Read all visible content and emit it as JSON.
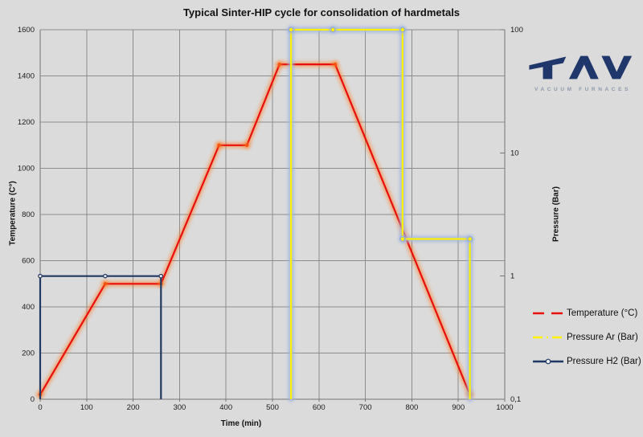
{
  "logo": {
    "brand": "TAV",
    "subtitle": "VACUUM FURNACES"
  },
  "legend": {
    "items": [
      {
        "label": "Temperature (°C)",
        "color": "#e8100c",
        "style": "dash"
      },
      {
        "label": "Pressure Ar (Bar)",
        "color": "#fff100",
        "style": "dash-dot"
      },
      {
        "label": "Pressure H2 (Bar)",
        "color": "#1f3864",
        "style": "line-circle"
      }
    ]
  },
  "chart_data": {
    "type": "line",
    "title": "Typical Sinter-HIP cycle for consolidation of hardmetals",
    "grid": true,
    "legend_position": "right",
    "x_axis": {
      "label": "Time (min)",
      "min": 0,
      "max": 1000,
      "tick_step": 100
    },
    "y_left": {
      "label": "Temperature (C°)",
      "min": 0,
      "max": 1600,
      "tick_step": 200
    },
    "y_right": {
      "label": "Pressure (Bar)",
      "scale": "log",
      "min": 0.1,
      "max": 100,
      "ticks": [
        100,
        10,
        1,
        0.1
      ],
      "tick_labels": [
        "100",
        "10",
        "1",
        "0,1"
      ]
    },
    "series": [
      {
        "name": "Temperature (°C)",
        "axis": "left",
        "color": "#e8100c",
        "glow": "#ff7a22",
        "glow_opacity": 0.55,
        "marker": {
          "fill": "#f4540e",
          "stroke": "none",
          "r": 2.2
        },
        "points": [
          [
            0,
            20
          ],
          [
            140,
            500
          ],
          [
            260,
            500
          ],
          [
            385,
            1100
          ],
          [
            445,
            1100
          ],
          [
            515,
            1450
          ],
          [
            635,
            1450
          ],
          [
            925,
            20
          ]
        ],
        "markers": [
          [
            0,
            20
          ],
          [
            140,
            500
          ],
          [
            260,
            500
          ],
          [
            385,
            1100
          ],
          [
            445,
            1100
          ],
          [
            515,
            1450
          ],
          [
            635,
            1450
          ],
          [
            925,
            20
          ]
        ]
      },
      {
        "name": "Pressure Ar (Bar)",
        "axis": "right",
        "color": "#fff100",
        "glow": "#9db4e2",
        "glow_opacity": 0.9,
        "marker": {
          "fill": "#ffee00",
          "stroke": "#8fa8d8",
          "r": 2.8
        },
        "points": [
          [
            540,
            0.1
          ],
          [
            540,
            100
          ],
          [
            630,
            100
          ],
          [
            780,
            100
          ],
          [
            780,
            2
          ],
          [
            925,
            2
          ],
          [
            925,
            0.1
          ]
        ],
        "markers": [
          [
            540,
            100
          ],
          [
            630,
            100
          ],
          [
            780,
            100
          ],
          [
            780,
            2
          ],
          [
            925,
            2
          ]
        ]
      },
      {
        "name": "Pressure H2 (Bar)",
        "axis": "right",
        "color": "#1f3864",
        "glow": null,
        "glow_opacity": 0,
        "marker": {
          "fill": "#e8ecf4",
          "stroke": "#1f3864",
          "r": 2.2
        },
        "points": [
          [
            0,
            0.1
          ],
          [
            0,
            1
          ],
          [
            140,
            1
          ],
          [
            260,
            1
          ],
          [
            260,
            0.1
          ]
        ],
        "markers": [
          [
            0,
            1
          ],
          [
            140,
            1
          ],
          [
            260,
            1
          ]
        ]
      }
    ]
  }
}
